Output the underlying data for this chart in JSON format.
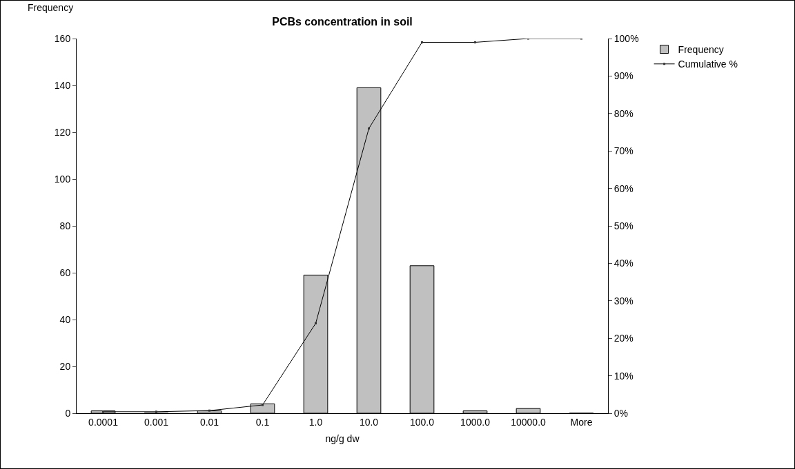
{
  "chart_data": {
    "type": "bar",
    "title": "PCBs concentration in soil",
    "xlabel": "ng/g dw",
    "ylabel": "Frequency",
    "categories": [
      "0.0001",
      "0.001",
      "0.01",
      "0.1",
      "1.0",
      "10.0",
      "100.0",
      "1000.0",
      "10000.0",
      "More"
    ],
    "series": [
      {
        "name": "Frequency",
        "color": "#c0c0c0",
        "values": [
          1,
          0,
          1,
          4,
          59,
          139,
          63,
          1,
          2,
          0
        ]
      },
      {
        "name": "Cumulative %",
        "type": "line",
        "axis": "y2",
        "color": "#000000",
        "values": [
          0.4,
          0.4,
          0.7,
          2.2,
          24,
          76,
          99,
          99,
          100,
          100
        ]
      }
    ],
    "ylim": [
      0,
      160
    ],
    "yticks": [
      0,
      20,
      40,
      60,
      80,
      100,
      120,
      140,
      160
    ],
    "y2lim": [
      0,
      100
    ],
    "y2ticks": [
      {
        "value": 0,
        "label": "0%"
      },
      {
        "value": 10,
        "label": "10%"
      },
      {
        "value": 20,
        "label": "20%"
      },
      {
        "value": 30,
        "label": "30%"
      },
      {
        "value": 40,
        "label": "40%"
      },
      {
        "value": 50,
        "label": "50%"
      },
      {
        "value": 60,
        "label": "60%"
      },
      {
        "value": 70,
        "label": "70%"
      },
      {
        "value": 80,
        "label": "80%"
      },
      {
        "value": 90,
        "label": "90%"
      },
      {
        "value": 100,
        "label": "100%"
      }
    ],
    "grid": false,
    "legend": "top right",
    "marker": "square",
    "line_style": "solid"
  }
}
